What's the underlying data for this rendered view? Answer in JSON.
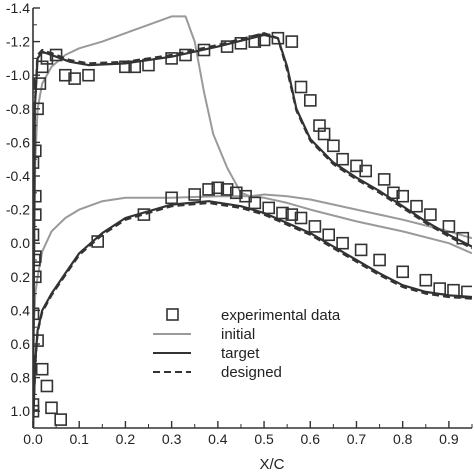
{
  "chart_data": {
    "type": "line",
    "title": "",
    "xlabel": "X/C",
    "ylabel": "",
    "xlim": [
      0,
      0.95
    ],
    "ylim": [
      1.1,
      -1.4
    ],
    "y_inverted": true,
    "grid": false,
    "legend_position": "bottom-center",
    "x_ticks": [
      "0.0",
      "0.1",
      "0.2",
      "0.3",
      "0.4",
      "0.5",
      "0.6",
      "0.7",
      "0.8",
      "0.9"
    ],
    "x_tick_values": [
      0,
      0.1,
      0.2,
      0.3,
      0.4,
      0.5,
      0.6,
      0.7,
      0.8,
      0.9
    ],
    "y_ticks": [
      "-1.4",
      "-1.2",
      "-1.0",
      "-0.8",
      "-0.6",
      "-0.4",
      "-0.2",
      "0.0",
      "0.2",
      "0.4",
      "0.6",
      "0.8",
      "1.0"
    ],
    "y_tick_values": [
      -1.4,
      -1.2,
      -1.0,
      -0.8,
      -0.6,
      -0.4,
      -0.2,
      0.0,
      0.2,
      0.4,
      0.6,
      0.8,
      1.0
    ],
    "legend": [
      {
        "label": "experimental data",
        "style": "square-marker",
        "color": "#333333"
      },
      {
        "label": "initial",
        "style": "solid",
        "color": "#9a9a9a"
      },
      {
        "label": "target",
        "style": "solid",
        "color": "#333333"
      },
      {
        "label": "designed",
        "style": "dashed",
        "color": "#333333"
      }
    ],
    "series": [
      {
        "name": "experimental data",
        "kind": "scatter",
        "color": "#333333",
        "x": [
          0.0,
          0.0,
          0.005,
          0.01,
          0.015,
          0.02,
          0.03,
          0.05,
          0.07,
          0.09,
          0.12,
          0.2,
          0.22,
          0.25,
          0.3,
          0.33,
          0.37,
          0.42,
          0.45,
          0.48,
          0.5,
          0.53,
          0.56,
          0.58,
          0.6,
          0.62,
          0.63,
          0.65,
          0.67,
          0.7,
          0.72,
          0.76,
          0.78,
          0.8,
          0.83,
          0.86,
          0.9,
          0.93,
          0.005,
          0.003,
          0.005,
          0.0,
          0.01,
          0.02,
          0.03,
          0.04,
          0.06,
          0.14,
          0.24,
          0.3,
          0.35,
          0.38,
          0.4,
          0.42,
          0.44,
          0.46,
          0.48,
          0.51,
          0.54,
          0.56,
          0.58,
          0.61,
          0.64,
          0.67,
          0.71,
          0.75,
          0.8,
          0.85,
          0.88,
          0.91,
          0.94,
          0.0,
          0.0,
          0.005,
          0.005
        ],
        "y": [
          -0.05,
          -0.48,
          -0.55,
          -0.8,
          -0.95,
          -1.05,
          -1.1,
          -1.12,
          -1.0,
          -0.98,
          -1.0,
          -1.05,
          -1.05,
          -1.06,
          -1.1,
          -1.12,
          -1.15,
          -1.17,
          -1.19,
          -1.2,
          -1.21,
          -1.22,
          -1.2,
          -0.93,
          -0.85,
          -0.7,
          -0.65,
          -0.58,
          -0.5,
          -0.46,
          -0.43,
          -0.38,
          -0.3,
          -0.28,
          -0.22,
          -0.17,
          -0.1,
          -0.03,
          -0.17,
          0.1,
          0.2,
          0.42,
          0.58,
          0.75,
          0.85,
          0.98,
          1.05,
          -0.01,
          -0.17,
          -0.27,
          -0.29,
          -0.32,
          -0.33,
          -0.32,
          -0.3,
          -0.28,
          -0.24,
          -0.21,
          -0.18,
          -0.17,
          -0.15,
          -0.1,
          -0.05,
          0.0,
          0.04,
          0.1,
          0.17,
          0.22,
          0.27,
          0.28,
          0.29,
          0.96,
          1.0,
          -0.28,
          0.08
        ]
      },
      {
        "name": "initial",
        "kind": "line",
        "color": "#9a9a9a",
        "segments": [
          {
            "x": [
              0.0,
              0.005,
              0.01,
              0.02,
              0.04,
              0.07,
              0.1,
              0.15,
              0.2,
              0.25,
              0.3,
              0.33,
              0.35,
              0.37,
              0.39,
              0.42,
              0.45,
              0.47,
              0.5,
              0.55,
              0.6,
              0.7,
              0.8,
              0.9,
              0.95
            ],
            "y": [
              0.6,
              -0.5,
              -0.8,
              -0.95,
              -1.05,
              -1.12,
              -1.16,
              -1.2,
              -1.25,
              -1.3,
              -1.35,
              -1.35,
              -1.2,
              -0.9,
              -0.65,
              -0.45,
              -0.3,
              -0.28,
              -0.27,
              -0.24,
              -0.2,
              -0.13,
              -0.07,
              0.0,
              0.06
            ]
          },
          {
            "x": [
              0.0,
              0.005,
              0.01,
              0.02,
              0.04,
              0.07,
              0.1,
              0.15,
              0.2,
              0.3,
              0.4,
              0.45,
              0.47,
              0.5,
              0.55,
              0.6,
              0.7,
              0.8,
              0.9,
              0.95
            ],
            "y": [
              0.6,
              0.3,
              0.2,
              0.05,
              -0.07,
              -0.15,
              -0.2,
              -0.25,
              -0.27,
              -0.27,
              -0.28,
              -0.28,
              -0.28,
              -0.29,
              -0.28,
              -0.26,
              -0.2,
              -0.14,
              -0.07,
              -0.03
            ]
          }
        ]
      },
      {
        "name": "target",
        "kind": "line",
        "color": "#333333",
        "segments": [
          {
            "x": [
              0.0,
              0.004,
              0.01,
              0.02,
              0.03,
              0.05,
              0.08,
              0.12,
              0.2,
              0.3,
              0.4,
              0.5,
              0.53,
              0.55,
              0.57,
              0.6,
              0.65,
              0.7,
              0.75,
              0.8,
              0.85,
              0.9,
              0.95
            ],
            "y": [
              1.1,
              -0.8,
              -1.1,
              -1.14,
              -1.13,
              -1.11,
              -1.08,
              -1.06,
              -1.07,
              -1.11,
              -1.17,
              -1.24,
              -1.22,
              -1.05,
              -0.8,
              -0.62,
              -0.48,
              -0.39,
              -0.31,
              -0.22,
              -0.13,
              -0.05,
              0.02
            ]
          },
          {
            "x": [
              0.0,
              0.005,
              0.01,
              0.02,
              0.04,
              0.07,
              0.1,
              0.15,
              0.2,
              0.3,
              0.38,
              0.45,
              0.5,
              0.55,
              0.6,
              0.65,
              0.7,
              0.75,
              0.8,
              0.85,
              0.9,
              0.95
            ],
            "y": [
              1.1,
              0.7,
              0.52,
              0.4,
              0.3,
              0.18,
              0.06,
              -0.06,
              -0.15,
              -0.23,
              -0.25,
              -0.22,
              -0.18,
              -0.12,
              -0.06,
              0.02,
              0.1,
              0.18,
              0.25,
              0.29,
              0.31,
              0.32
            ]
          }
        ]
      },
      {
        "name": "designed",
        "kind": "line",
        "style": "dashed",
        "color": "#333333",
        "segments": [
          {
            "x": [
              0.0,
              0.004,
              0.01,
              0.02,
              0.03,
              0.05,
              0.08,
              0.12,
              0.2,
              0.3,
              0.4,
              0.5,
              0.53,
              0.55,
              0.57,
              0.6,
              0.65,
              0.7,
              0.75,
              0.8,
              0.85,
              0.9,
              0.95
            ],
            "y": [
              1.1,
              -0.82,
              -1.12,
              -1.15,
              -1.14,
              -1.12,
              -1.09,
              -1.07,
              -1.08,
              -1.12,
              -1.18,
              -1.25,
              -1.22,
              -1.03,
              -0.79,
              -0.61,
              -0.47,
              -0.38,
              -0.3,
              -0.21,
              -0.12,
              -0.04,
              0.03
            ]
          },
          {
            "x": [
              0.0,
              0.005,
              0.01,
              0.02,
              0.04,
              0.07,
              0.1,
              0.15,
              0.2,
              0.3,
              0.38,
              0.45,
              0.5,
              0.55,
              0.6,
              0.65,
              0.7,
              0.75,
              0.8,
              0.85,
              0.9,
              0.95
            ],
            "y": [
              1.1,
              0.72,
              0.53,
              0.41,
              0.31,
              0.19,
              0.07,
              -0.05,
              -0.14,
              -0.22,
              -0.24,
              -0.21,
              -0.17,
              -0.11,
              -0.05,
              0.03,
              0.11,
              0.19,
              0.26,
              0.3,
              0.32,
              0.33
            ]
          }
        ]
      }
    ]
  }
}
